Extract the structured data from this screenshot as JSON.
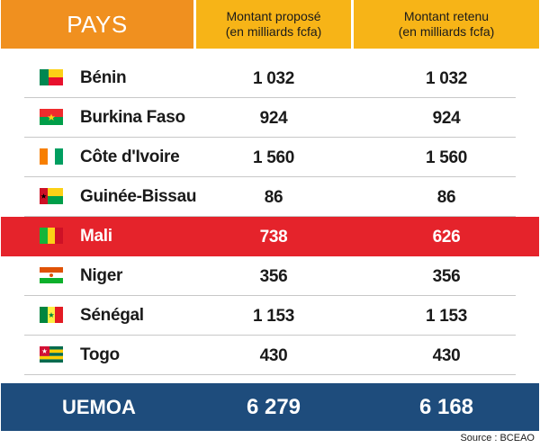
{
  "header": {
    "pays": "PAYS",
    "col_proposed": [
      "Montant proposé",
      "(en milliards fcfa)"
    ],
    "col_retained": [
      "Montant retenu",
      "(en milliards fcfa)"
    ]
  },
  "rows": [
    {
      "country": "Bénin",
      "flag": "benin-flag-icon",
      "proposed": "1 032",
      "retained": "1 032",
      "highlight": false
    },
    {
      "country": "Burkina Faso",
      "flag": "burkina-faso-flag-icon",
      "proposed": "924",
      "retained": "924",
      "highlight": false
    },
    {
      "country": "Côte d'Ivoire",
      "flag": "cote-divoire-flag-icon",
      "proposed": "1 560",
      "retained": "1 560",
      "highlight": false
    },
    {
      "country": "Guinée-Bissau",
      "flag": "guinea-bissau-flag-icon",
      "proposed": "86",
      "retained": "86",
      "highlight": false
    },
    {
      "country": "Mali",
      "flag": "mali-flag-icon",
      "proposed": "738",
      "retained": "626",
      "highlight": true
    },
    {
      "country": "Niger",
      "flag": "niger-flag-icon",
      "proposed": "356",
      "retained": "356",
      "highlight": false
    },
    {
      "country": "Sénégal",
      "flag": "senegal-flag-icon",
      "proposed": "1 153",
      "retained": "1 153",
      "highlight": false
    },
    {
      "country": "Togo",
      "flag": "togo-flag-icon",
      "proposed": "430",
      "retained": "430",
      "highlight": false
    }
  ],
  "total": {
    "label": "UEMOA",
    "proposed": "6 279",
    "retained": "6 168"
  },
  "source": "Source : BCEAO",
  "colors": {
    "header_pays": "#f0901f",
    "header_amount": "#f7b417",
    "highlight_row": "#e5232b",
    "total_row": "#1e4c7c"
  }
}
